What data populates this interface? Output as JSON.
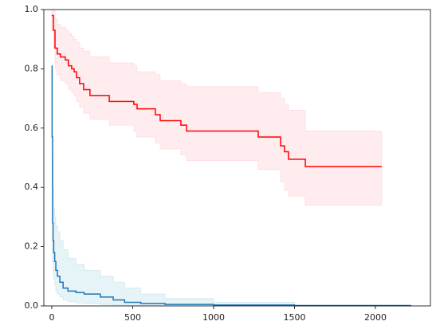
{
  "chart_data": {
    "type": "step",
    "xlim": [
      -49,
      2340
    ],
    "ylim": [
      0,
      1
    ],
    "xticks": [
      0,
      500,
      1000,
      1500,
      2000
    ],
    "yticks": [
      {
        "value": 0,
        "label": "0.0"
      },
      0.2,
      0.4,
      0.6,
      0.8,
      {
        "value": 1,
        "label": "1.0"
      }
    ],
    "series": [
      {
        "color": "#ff0000",
        "band_color": "#ffc0cb",
        "x": [
          0,
          10,
          20,
          34,
          54,
          84,
          103,
          123,
          138,
          153,
          172,
          197,
          236,
          355,
          507,
          527,
          640,
          670,
          798,
          833,
          1276,
          1414,
          1438,
          1463,
          1567,
          2039
        ],
        "values": [
          0.98,
          0.93,
          0.87,
          0.85,
          0.84,
          0.83,
          0.81,
          0.8,
          0.79,
          0.77,
          0.75,
          0.73,
          0.71,
          0.69,
          0.68,
          0.665,
          0.645,
          0.625,
          0.61,
          0.59,
          0.57,
          0.54,
          0.52,
          0.495,
          0.47,
          0.47
        ],
        "ci_upper": [
          1,
          1,
          0.97,
          0.95,
          0.94,
          0.93,
          0.92,
          0.91,
          0.9,
          0.89,
          0.87,
          0.86,
          0.84,
          0.82,
          0.81,
          0.79,
          0.78,
          0.76,
          0.75,
          0.74,
          0.72,
          0.7,
          0.68,
          0.66,
          0.59,
          0.59
        ],
        "ci_lower": [
          0.93,
          0.87,
          0.8,
          0.78,
          0.76,
          0.75,
          0.73,
          0.72,
          0.71,
          0.69,
          0.67,
          0.65,
          0.63,
          0.61,
          0.59,
          0.57,
          0.55,
          0.53,
          0.51,
          0.49,
          0.46,
          0.42,
          0.39,
          0.37,
          0.34,
          0.34
        ]
      },
      {
        "color": "#1f77b4",
        "band_color": "#add8e6",
        "x": [
          0,
          2,
          5,
          8,
          12,
          18,
          25,
          35,
          50,
          70,
          100,
          150,
          200,
          300,
          380,
          450,
          550,
          700,
          1000,
          1500,
          2220
        ],
        "values": [
          0.81,
          0.57,
          0.28,
          0.22,
          0.18,
          0.15,
          0.12,
          0.1,
          0.08,
          0.06,
          0.05,
          0.045,
          0.04,
          0.03,
          0.02,
          0.012,
          0.008,
          0.005,
          0.003,
          0.001,
          0.001
        ],
        "ci_upper": [
          0.81,
          0.8,
          0.5,
          0.4,
          0.33,
          0.3,
          0.27,
          0.25,
          0.22,
          0.19,
          0.16,
          0.14,
          0.12,
          0.1,
          0.08,
          0.06,
          0.04,
          0.025,
          0.012,
          0.004,
          0.003
        ],
        "ci_lower": [
          0.81,
          0.4,
          0.15,
          0.11,
          0.09,
          0.07,
          0.05,
          0.04,
          0.03,
          0.02,
          0.015,
          0.01,
          0.008,
          0.005,
          0.003,
          0.001,
          0,
          0,
          0,
          0,
          0
        ]
      }
    ]
  }
}
